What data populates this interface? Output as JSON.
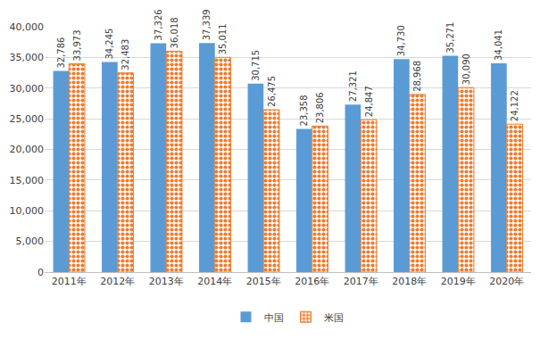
{
  "chart_data": {
    "type": "bar",
    "categories": [
      "2011年",
      "2012年",
      "2013年",
      "2014年",
      "2015年",
      "2016年",
      "2017年",
      "2018年",
      "2019年",
      "2020年"
    ],
    "series": [
      {
        "name": "中国",
        "color": "#5b9bd5",
        "values": [
          32786,
          34245,
          37326,
          37339,
          30715,
          23358,
          27321,
          34730,
          35271,
          34041
        ],
        "value_labels": [
          "32,786",
          "34,245",
          "37,326",
          "37,339",
          "30,715",
          "23,358",
          "27,321",
          "34,730",
          "35,271",
          "34,041"
        ]
      },
      {
        "name": "米国",
        "color": "#ed7d31",
        "marker": "dots",
        "values": [
          33973,
          32483,
          36018,
          35011,
          26475,
          23806,
          24847,
          28968,
          30090,
          24122
        ],
        "value_labels": [
          "33,973",
          "32,483",
          "36,018",
          "35,011",
          "26,475",
          "23,806",
          "24,847",
          "28,968",
          "30,090",
          "24,122"
        ]
      }
    ],
    "ylim": [
      0,
      40000
    ],
    "yticks": [
      0,
      {
        "value": 5000,
        "label": "5,000"
      },
      {
        "value": 10000,
        "label": "10,000"
      },
      {
        "value": 15000,
        "label": "15,000"
      },
      {
        "value": 20000,
        "label": "20,000"
      },
      {
        "value": 25000,
        "label": "25,000"
      },
      {
        "value": 30000,
        "label": "30,000"
      },
      {
        "value": 35000,
        "label": "35,000"
      },
      {
        "value": 40000,
        "label": "40,000"
      }
    ],
    "grid": true,
    "legend": "bottom",
    "data_labels": true
  }
}
